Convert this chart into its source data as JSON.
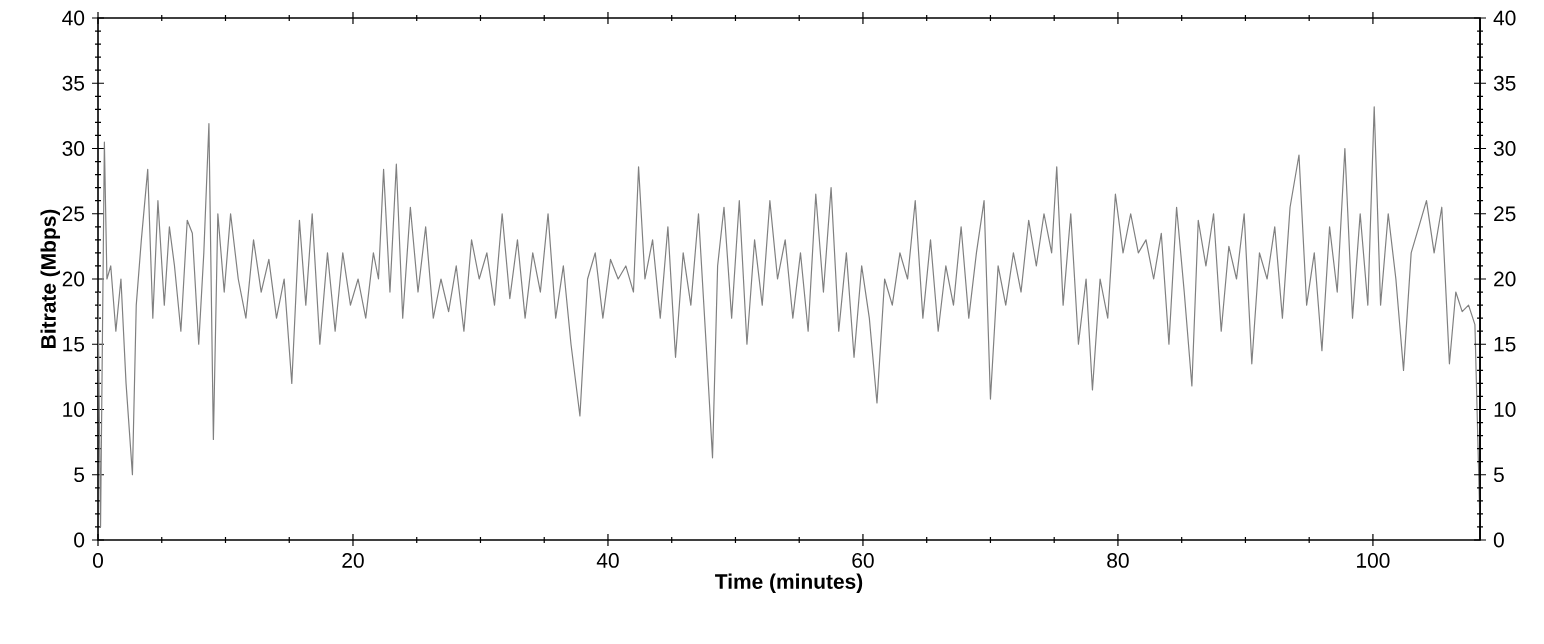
{
  "chart_data": {
    "type": "line",
    "xlabel": "Time (minutes)",
    "ylabel": "Bitrate (Mbps)",
    "xlim": [
      0,
      108.4
    ],
    "ylim": [
      0,
      40
    ],
    "y2lim": [
      0,
      40
    ],
    "xticks": [
      0,
      20,
      40,
      60,
      80,
      100
    ],
    "yticks": [
      0,
      5,
      10,
      15,
      20,
      25,
      30,
      35,
      40
    ],
    "y2ticks": [
      0,
      5,
      10,
      15,
      20,
      25,
      30,
      35,
      40
    ],
    "grid": false,
    "legend": false,
    "marker": "none",
    "line_style": "solid",
    "x": [
      0,
      0.2,
      0.5,
      0.7,
      1.0,
      1.4,
      1.8,
      2.2,
      2.7,
      3.0,
      3.4,
      3.9,
      4.3,
      4.7,
      5.2,
      5.6,
      6.0,
      6.5,
      7.0,
      7.4,
      7.9,
      8.3,
      8.7,
      9.05,
      9.4,
      9.9,
      10.4,
      11.0,
      11.6,
      12.2,
      12.8,
      13.4,
      14.0,
      14.6,
      15.2,
      15.8,
      16.3,
      16.8,
      17.4,
      18.0,
      18.6,
      19.2,
      19.8,
      20.4,
      21.0,
      21.6,
      22.0,
      22.4,
      22.9,
      23.4,
      23.9,
      24.5,
      25.1,
      25.7,
      26.3,
      26.9,
      27.5,
      28.1,
      28.7,
      29.3,
      29.9,
      30.5,
      31.1,
      31.7,
      32.3,
      32.9,
      33.5,
      34.1,
      34.7,
      35.3,
      35.9,
      36.5,
      37.1,
      37.8,
      38.4,
      39.0,
      39.6,
      40.2,
      40.8,
      41.4,
      42.0,
      42.4,
      42.9,
      43.5,
      44.1,
      44.7,
      45.3,
      45.9,
      46.5,
      47.1,
      47.7,
      48.2,
      48.6,
      49.1,
      49.7,
      50.3,
      50.9,
      51.5,
      52.1,
      52.7,
      53.3,
      53.9,
      54.5,
      55.1,
      55.7,
      56.3,
      56.9,
      57.5,
      58.1,
      58.7,
      59.3,
      59.9,
      60.5,
      61.1,
      61.7,
      62.3,
      62.9,
      63.5,
      64.1,
      64.7,
      65.3,
      65.9,
      66.5,
      67.1,
      67.7,
      68.3,
      68.9,
      69.5,
      70.0,
      70.6,
      71.2,
      71.8,
      72.4,
      73.0,
      73.6,
      74.2,
      74.8,
      75.2,
      75.7,
      76.3,
      76.9,
      77.5,
      78.0,
      78.6,
      79.2,
      79.8,
      80.4,
      81.0,
      81.6,
      82.2,
      82.8,
      83.4,
      84.0,
      84.6,
      85.2,
      85.8,
      86.3,
      86.9,
      87.5,
      88.1,
      88.7,
      89.3,
      89.9,
      90.5,
      91.1,
      91.7,
      92.3,
      92.9,
      93.5,
      94.2,
      94.8,
      95.4,
      96.0,
      96.6,
      97.2,
      97.8,
      98.4,
      99.0,
      99.6,
      100.1,
      100.6,
      101.2,
      101.8,
      102.4,
      103.0,
      103.6,
      104.2,
      104.8,
      105.4,
      106.0,
      106.5,
      107.0,
      107.5,
      108.0,
      108.4
    ],
    "series": [
      {
        "color": "#808080",
        "values": [
          19,
          1,
          30.5,
          20,
          21,
          16,
          20,
          12,
          5,
          18,
          23,
          28.4,
          17,
          26,
          18,
          24,
          21,
          16,
          24.5,
          23.5,
          15,
          22,
          31.9,
          7.7,
          25,
          19,
          25,
          20,
          17,
          23,
          19,
          21.5,
          17,
          20,
          12,
          24.5,
          18,
          25,
          15,
          22,
          16,
          22,
          18,
          20,
          17,
          22,
          20,
          28.4,
          19,
          28.8,
          17,
          25.5,
          19,
          24,
          17,
          20,
          17.5,
          21,
          16,
          23,
          20,
          22,
          18,
          25,
          18.5,
          23,
          17,
          22,
          19,
          25,
          17,
          21,
          15,
          9.5,
          20,
          22,
          17,
          21.5,
          20,
          21,
          19,
          28.6,
          20,
          23,
          17,
          24,
          14,
          22,
          18,
          25,
          15,
          6.3,
          21,
          25.5,
          17,
          26,
          15,
          23,
          18,
          26,
          20,
          23,
          17,
          22,
          16,
          26.5,
          19,
          27,
          16,
          22,
          14,
          21,
          17,
          10.5,
          20,
          18,
          22,
          20,
          26,
          17,
          23,
          16,
          21,
          18,
          24,
          17,
          22,
          26,
          10.8,
          21,
          18,
          22,
          19,
          24.5,
          21,
          25,
          22,
          28.6,
          18,
          25,
          15,
          20,
          11.5,
          20,
          17,
          26.5,
          22,
          25,
          22,
          23,
          20,
          23.5,
          15,
          25.5,
          19,
          11.8,
          24.5,
          21,
          25,
          16,
          22.5,
          20,
          25,
          13.5,
          22,
          20,
          24,
          17,
          25.5,
          29.5,
          18,
          22,
          14.5,
          24,
          19,
          30,
          17,
          25,
          18,
          33.2,
          18,
          25,
          20,
          13,
          22,
          24,
          26,
          22,
          25.5,
          13.5,
          19,
          17.5,
          18,
          16.5,
          1
        ]
      }
    ]
  }
}
